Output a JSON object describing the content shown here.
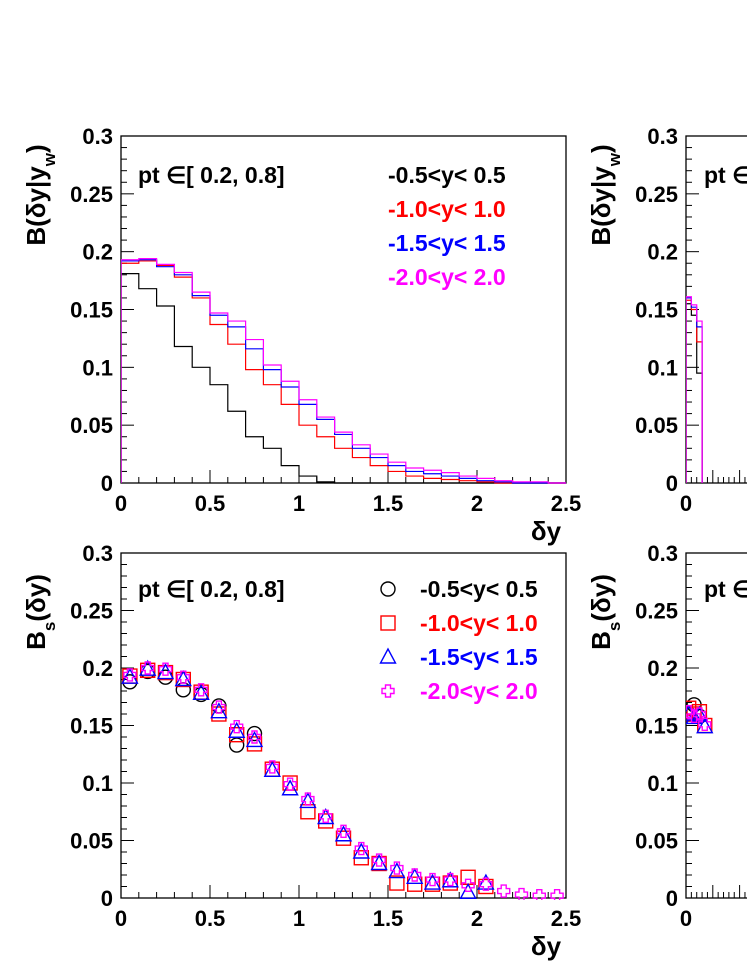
{
  "chart_data": [
    {
      "type": "line",
      "subtype": "histogram",
      "ylabel": "B(δy|y_w)",
      "xlabel": "δy",
      "annotation": "pt ∈[ 0.2, 0.8]",
      "xlim": [
        0,
        2.5
      ],
      "ylim": [
        0,
        0.3
      ],
      "xticks": [
        "0",
        "0.5",
        "1",
        "1.5",
        "2",
        "2.5"
      ],
      "yticks": [
        "0",
        "0.05",
        "0.1",
        "0.15",
        "0.2",
        "0.25",
        "0.3"
      ],
      "bin_edges": [
        0,
        0.1,
        0.2,
        0.3,
        0.4,
        0.5,
        0.6,
        0.7,
        0.8,
        0.9,
        1.0,
        1.1,
        1.2,
        1.3,
        1.4,
        1.5,
        1.6,
        1.7,
        1.8,
        1.9,
        2.0,
        2.1,
        2.2,
        2.3,
        2.4,
        2.5
      ],
      "legend_position": "top-right",
      "series": [
        {
          "name": "-0.5<y< 0.5",
          "color": "#000000",
          "values": [
            0.181,
            0.168,
            0.153,
            0.118,
            0.1,
            0.085,
            0.062,
            0.04,
            0.03,
            0.015,
            0.006,
            0.001,
            0,
            0,
            0,
            0,
            0,
            0,
            0,
            0,
            0,
            0,
            0,
            0,
            0
          ]
        },
        {
          "name": "-1.0<y< 1.0",
          "color": "#ff0000",
          "values": [
            0.19,
            0.192,
            0.188,
            0.178,
            0.16,
            0.137,
            0.12,
            0.098,
            0.085,
            0.068,
            0.05,
            0.04,
            0.03,
            0.022,
            0.015,
            0.01,
            0.006,
            0.004,
            0.003,
            0.002,
            0.001,
            0,
            0,
            0,
            0
          ]
        },
        {
          "name": "-1.5<y< 1.5",
          "color": "#0000ff",
          "values": [
            0.192,
            0.193,
            0.187,
            0.18,
            0.162,
            0.145,
            0.135,
            0.116,
            0.098,
            0.083,
            0.068,
            0.055,
            0.042,
            0.03,
            0.022,
            0.015,
            0.01,
            0.008,
            0.006,
            0.004,
            0.002,
            0.001,
            0,
            0,
            0
          ]
        },
        {
          "name": "-2.0<y< 2.0",
          "color": "#ff00ff",
          "values": [
            0.193,
            0.194,
            0.189,
            0.182,
            0.165,
            0.147,
            0.14,
            0.124,
            0.102,
            0.088,
            0.072,
            0.057,
            0.044,
            0.033,
            0.025,
            0.018,
            0.013,
            0.011,
            0.009,
            0.006,
            0.004,
            0.002,
            0.001,
            0.001,
            0
          ]
        }
      ]
    },
    {
      "type": "line",
      "subtype": "histogram",
      "ylabel": "B(δy|y_w)",
      "xlabel": "",
      "annotation": "pt ∈",
      "xlim": [
        0,
        2.5
      ],
      "ylim": [
        0,
        0.3
      ],
      "xticks": [
        "0"
      ],
      "yticks": [
        "0",
        "0.05",
        "0.1",
        "0.15",
        "0.2",
        "0.25",
        "0.3"
      ],
      "bin_edges": [
        0,
        0.1,
        0.2,
        0.3
      ],
      "series": [
        {
          "name": "",
          "color": "#000000",
          "values": [
            0.155,
            0.145,
            0.095
          ]
        },
        {
          "name": "",
          "color": "#ff0000",
          "values": [
            0.158,
            0.15,
            0.122
          ]
        },
        {
          "name": "",
          "color": "#0000ff",
          "values": [
            0.16,
            0.152,
            0.135
          ]
        },
        {
          "name": "",
          "color": "#ff00ff",
          "values": [
            0.161,
            0.154,
            0.14
          ]
        }
      ]
    },
    {
      "type": "scatter",
      "ylabel": "B_s(δy)",
      "xlabel": "δy",
      "annotation": "pt ∈[ 0.2, 0.8]",
      "xlim": [
        0,
        2.5
      ],
      "ylim": [
        0,
        0.3
      ],
      "xticks": [
        "0",
        "0.5",
        "1",
        "1.5",
        "2",
        "2.5"
      ],
      "yticks": [
        "0",
        "0.05",
        "0.1",
        "0.15",
        "0.2",
        "0.25",
        "0.3"
      ],
      "legend_position": "top-right",
      "series": [
        {
          "name": "-0.5<y< 0.5",
          "marker": "circle",
          "color": "#000000",
          "x": [
            0.05,
            0.15,
            0.25,
            0.35,
            0.45,
            0.55,
            0.65,
            0.75
          ],
          "y": [
            0.188,
            0.197,
            0.192,
            0.181,
            0.177,
            0.167,
            0.133,
            0.143
          ]
        },
        {
          "name": "-1.0<y< 1.0",
          "marker": "square",
          "color": "#ff0000",
          "x": [
            0.05,
            0.15,
            0.25,
            0.35,
            0.45,
            0.55,
            0.65,
            0.75,
            0.85,
            0.95,
            1.05,
            1.15,
            1.25,
            1.35,
            1.45,
            1.55,
            1.65,
            1.75,
            1.85,
            1.95,
            2.05
          ],
          "y": [
            0.193,
            0.198,
            0.196,
            0.19,
            0.179,
            0.16,
            0.142,
            0.134,
            0.112,
            0.1,
            0.075,
            0.067,
            0.052,
            0.035,
            0.03,
            0.013,
            0.012,
            0.012,
            0.013,
            0.018,
            0.01
          ]
        },
        {
          "name": "-1.5<y< 1.5",
          "marker": "triangle",
          "color": "#0000ff",
          "x": [
            0.05,
            0.15,
            0.25,
            0.35,
            0.45,
            0.55,
            0.65,
            0.75,
            0.85,
            0.95,
            1.05,
            1.15,
            1.25,
            1.35,
            1.45,
            1.55,
            1.65,
            1.75,
            1.85,
            1.95,
            2.05
          ],
          "y": [
            0.192,
            0.199,
            0.196,
            0.19,
            0.178,
            0.162,
            0.145,
            0.137,
            0.111,
            0.095,
            0.084,
            0.07,
            0.055,
            0.04,
            0.03,
            0.023,
            0.018,
            0.013,
            0.015,
            0.005,
            0.013
          ]
        },
        {
          "name": "-2.0<y< 2.0",
          "marker": "cross",
          "color": "#ff00ff",
          "x": [
            0.05,
            0.15,
            0.25,
            0.35,
            0.45,
            0.55,
            0.65,
            0.75,
            0.85,
            0.95,
            1.05,
            1.15,
            1.25,
            1.35,
            1.45,
            1.55,
            1.65,
            1.75,
            1.85,
            1.95,
            2.05,
            2.15,
            2.25,
            2.35,
            2.45
          ],
          "y": [
            0.194,
            0.2,
            0.199,
            0.192,
            0.181,
            0.166,
            0.149,
            0.14,
            0.114,
            0.099,
            0.086,
            0.071,
            0.058,
            0.043,
            0.033,
            0.026,
            0.02,
            0.016,
            0.016,
            0.011,
            0.012,
            0.006,
            0.003,
            0.002,
            0.002
          ]
        }
      ]
    },
    {
      "type": "scatter",
      "ylabel": "B_s(δy)",
      "xlabel": "",
      "annotation": "pt ∈",
      "xlim": [
        0,
        2.5
      ],
      "ylim": [
        0,
        0.3
      ],
      "xticks": [
        "0"
      ],
      "yticks": [
        "0",
        "0.05",
        "0.1",
        "0.15",
        "0.2",
        "0.25",
        "0.3"
      ],
      "series": [
        {
          "name": "",
          "marker": "circle",
          "color": "#000000",
          "x": [
            0.05,
            0.15,
            0.25
          ],
          "y": [
            0.16,
            0.168,
            0.158
          ]
        },
        {
          "name": "",
          "marker": "square",
          "color": "#ff0000",
          "x": [
            0.05,
            0.15,
            0.25,
            0.35
          ],
          "y": [
            0.165,
            0.16,
            0.162,
            0.15
          ]
        },
        {
          "name": "",
          "marker": "triangle",
          "color": "#0000ff",
          "x": [
            0.05,
            0.15,
            0.25,
            0.35
          ],
          "y": [
            0.16,
            0.157,
            0.159,
            0.149
          ]
        },
        {
          "name": "",
          "marker": "cross",
          "color": "#ff00ff",
          "x": [
            0.05,
            0.15,
            0.25,
            0.35
          ],
          "y": [
            0.162,
            0.158,
            0.16,
            0.151
          ]
        }
      ]
    }
  ]
}
